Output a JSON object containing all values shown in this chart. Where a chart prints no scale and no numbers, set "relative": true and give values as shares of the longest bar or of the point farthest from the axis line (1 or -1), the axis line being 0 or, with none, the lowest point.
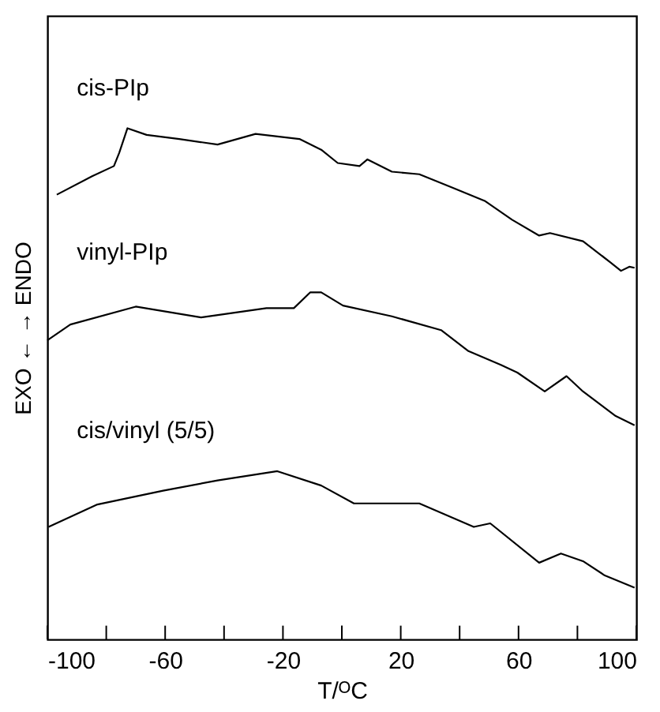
{
  "chart_data": {
    "type": "line",
    "relative": true,
    "xlabel": "T/ᴼC",
    "ylabel": "EXO ← → ENDO",
    "xlim": [
      -100,
      100
    ],
    "xticks": [
      -100,
      {
        "value": -80,
        "label": null
      },
      -60,
      {
        "value": -40,
        "label": null
      },
      -20,
      {
        "value": 0,
        "label": null
      },
      20,
      {
        "value": 40,
        "label": null
      },
      60,
      {
        "value": 80,
        "label": null
      },
      100
    ],
    "grid": false,
    "legend": false,
    "series": [
      {
        "name": "cis-PIp",
        "color": "#000000",
        "x": [
          -96.8,
          -84.8,
          -77.4,
          -75.6,
          -72.8,
          -66.3,
          -55.2,
          -42.2,
          -29.3,
          -14.4,
          -7,
          -1.4,
          6,
          8.7,
          17,
          26.3,
          37.4,
          48.5,
          57.8,
          67,
          70.7,
          81.9,
          91.1,
          94.8,
          97.6,
          99.4
        ],
        "values": [
          0.87,
          0.906,
          0.926,
          0.952,
          1,
          0.987,
          0.979,
          0.968,
          0.989,
          0.979,
          0.958,
          0.932,
          0.926,
          0.939,
          0.915,
          0.91,
          0.884,
          0.858,
          0.821,
          0.79,
          0.795,
          0.779,
          0.738,
          0.721,
          0.729,
          0.727
        ]
      },
      {
        "name": "vinyl-PIp",
        "color": "#000000",
        "x": [
          -100,
          -92.2,
          -70,
          -47.8,
          -25.6,
          -16.3,
          -10.7,
          -7,
          0.4,
          17,
          33.7,
          43,
          54,
          59.6,
          68.9,
          76.3,
          81.9,
          93,
          99.4
        ],
        "values": [
          0.585,
          0.616,
          0.651,
          0.63,
          0.648,
          0.648,
          0.679,
          0.679,
          0.653,
          0.632,
          0.605,
          0.564,
          0.537,
          0.522,
          0.485,
          0.515,
          0.485,
          0.437,
          0.419
        ]
      },
      {
        "name": "cis/vinyl (5/5)",
        "color": "#000000",
        "x": [
          -99.6,
          -83,
          -60.7,
          -42.2,
          -21.9,
          -7,
          4.1,
          26.3,
          44.8,
          50.4,
          67,
          74.4,
          81.9,
          89.3,
          99.4
        ],
        "values": [
          0.22,
          0.264,
          0.291,
          0.311,
          0.329,
          0.301,
          0.266,
          0.266,
          0.22,
          0.227,
          0.15,
          0.168,
          0.153,
          0.125,
          0.101
        ]
      }
    ]
  }
}
